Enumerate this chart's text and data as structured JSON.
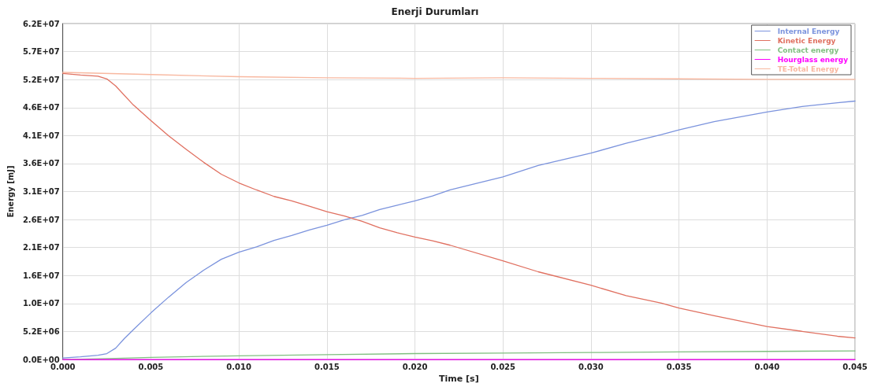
{
  "chart_data": {
    "type": "line",
    "title": "Enerji Durumları",
    "xlabel": "Time [s]",
    "ylabel": "Energy [mJ]",
    "xlim": [
      0,
      0.045
    ],
    "xticks": [
      {
        "value": 0,
        "label": "0.000"
      },
      {
        "value": 0.005,
        "label": "0.005"
      },
      {
        "value": 0.01,
        "label": "0.010"
      },
      {
        "value": 0.015,
        "label": "0.015"
      },
      {
        "value": 0.02,
        "label": "0.020"
      },
      {
        "value": 0.025,
        "label": "0.025"
      },
      {
        "value": 0.03,
        "label": "0.030"
      },
      {
        "value": 0.035,
        "label": "0.035"
      },
      {
        "value": 0.04,
        "label": "0.040"
      },
      {
        "value": 0.045,
        "label": "0.045"
      }
    ],
    "ylim": [
      0,
      62000000
    ],
    "yticks": [
      {
        "value": 0,
        "label": "0.0E+00"
      },
      {
        "value": 5166667,
        "label": "5.2E+06"
      },
      {
        "value": 10333333,
        "label": "1.0E+07"
      },
      {
        "value": 15500000,
        "label": "1.6E+07"
      },
      {
        "value": 20666667,
        "label": "2.1E+07"
      },
      {
        "value": 25833333,
        "label": "2.6E+07"
      },
      {
        "value": 31000000,
        "label": "3.1E+07"
      },
      {
        "value": 36166667,
        "label": "3.6E+07"
      },
      {
        "value": 41333333,
        "label": "4.1E+07"
      },
      {
        "value": 46500000,
        "label": "4.6E+07"
      },
      {
        "value": 51666667,
        "label": "5.2E+07"
      },
      {
        "value": 56833333,
        "label": "5.7E+07"
      },
      {
        "value": 62000000,
        "label": "6.2E+07"
      }
    ],
    "grid": true,
    "legend": "top right",
    "marker": "none",
    "line_style": "solid",
    "series": [
      {
        "name": "Internal Energy",
        "color": "#7b93dd",
        "x": [
          0,
          0.001,
          0.002,
          0.0025,
          0.003,
          0.0035,
          0.004,
          0.005,
          0.006,
          0.007,
          0.008,
          0.009,
          0.01,
          0.011,
          0.012,
          0.013,
          0.014,
          0.015,
          0.016,
          0.017,
          0.018,
          0.019,
          0.02,
          0.021,
          0.022,
          0.025,
          0.027,
          0.03,
          0.032,
          0.034,
          0.035,
          0.037,
          0.04,
          0.042,
          0.044,
          0.045
        ],
        "values": [
          300000,
          500000,
          800000,
          1100000,
          2100000,
          3900000,
          5500000,
          8600000,
          11500000,
          14200000,
          16500000,
          18500000,
          19800000,
          20800000,
          22000000,
          22900000,
          23900000,
          24800000,
          25800000,
          26600000,
          27700000,
          28500000,
          29300000,
          30200000,
          31300000,
          33700000,
          35800000,
          38100000,
          39900000,
          41500000,
          42400000,
          43900000,
          45700000,
          46700000,
          47400000,
          47700000
        ]
      },
      {
        "name": "Kinetic Energy",
        "color": "#e07060",
        "x": [
          0,
          0.001,
          0.002,
          0.0025,
          0.003,
          0.004,
          0.005,
          0.006,
          0.007,
          0.008,
          0.009,
          0.01,
          0.011,
          0.012,
          0.013,
          0.014,
          0.015,
          0.016,
          0.017,
          0.018,
          0.019,
          0.02,
          0.021,
          0.022,
          0.025,
          0.027,
          0.03,
          0.032,
          0.034,
          0.035,
          0.037,
          0.04,
          0.042,
          0.044,
          0.045
        ],
        "values": [
          52800000,
          52500000,
          52300000,
          51800000,
          50500000,
          47000000,
          44100000,
          41300000,
          38800000,
          36400000,
          34200000,
          32600000,
          31300000,
          30100000,
          29300000,
          28300000,
          27300000,
          26500000,
          25500000,
          24300000,
          23400000,
          22600000,
          21900000,
          21100000,
          18200000,
          16200000,
          13700000,
          11800000,
          10400000,
          9500000,
          8100000,
          6100000,
          5200000,
          4300000,
          4000000
        ]
      },
      {
        "name": "Contact energy",
        "color": "#80c080",
        "x": [
          0,
          0.003,
          0.005,
          0.01,
          0.015,
          0.02,
          0.025,
          0.03,
          0.035,
          0.04,
          0.045
        ],
        "values": [
          0,
          200000,
          400000,
          700000,
          900000,
          1100000,
          1200000,
          1300000,
          1400000,
          1500000,
          1600000
        ]
      },
      {
        "name": "Hourglass energy",
        "color": "#ff00ff",
        "x": [
          0,
          0.045
        ],
        "values": [
          0,
          0
        ]
      },
      {
        "name": "TE-Total Energy",
        "color": "#f8b8a0",
        "x": [
          0,
          0.005,
          0.01,
          0.015,
          0.02,
          0.025,
          0.03,
          0.035,
          0.04,
          0.045
        ],
        "values": [
          53000000,
          52600000,
          52200000,
          52000000,
          51900000,
          52000000,
          51900000,
          51800000,
          51700000,
          51700000
        ]
      }
    ]
  }
}
